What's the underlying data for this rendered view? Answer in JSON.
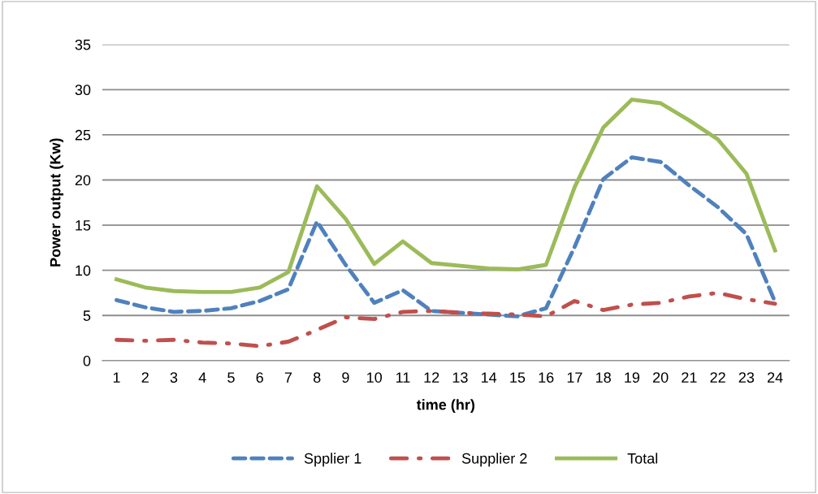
{
  "chart_data": {
    "type": "line",
    "xlabel": "time (hr)",
    "ylabel": "Power output (Kw)",
    "categories": [
      "1",
      "2",
      "3",
      "4",
      "5",
      "6",
      "7",
      "8",
      "9",
      "10",
      "11",
      "12",
      "13",
      "14",
      "15",
      "16",
      "17",
      "18",
      "19",
      "20",
      "21",
      "22",
      "23",
      "24"
    ],
    "series": [
      {
        "name": "Spplier 1",
        "color": "#4f81bd",
        "line_style": "dashed",
        "values": [
          6.7,
          5.9,
          5.4,
          5.5,
          5.8,
          6.6,
          7.9,
          15.4,
          10.6,
          6.4,
          7.8,
          5.5,
          5.3,
          5.1,
          4.9,
          5.8,
          12.6,
          20.1,
          22.5,
          22.0,
          19.4,
          17.0,
          14.0,
          6.5
        ]
      },
      {
        "name": "Supplier 2",
        "color": "#c0504d",
        "line_style": "dashdot",
        "values": [
          2.3,
          2.2,
          2.3,
          2.0,
          1.9,
          1.6,
          2.1,
          3.4,
          4.8,
          4.6,
          5.4,
          5.5,
          5.3,
          5.2,
          5.1,
          4.9,
          6.6,
          5.6,
          6.2,
          6.4,
          7.1,
          7.5,
          6.8,
          6.3
        ]
      },
      {
        "name": "Total",
        "color": "#9bbb59",
        "line_style": "solid",
        "values": [
          9.0,
          8.1,
          7.7,
          7.6,
          7.6,
          8.1,
          9.8,
          19.3,
          15.7,
          10.7,
          13.2,
          10.8,
          10.5,
          10.2,
          10.1,
          10.6,
          19.2,
          25.8,
          28.9,
          28.5,
          26.6,
          24.5,
          20.7,
          12.2
        ]
      }
    ],
    "ylim": [
      0,
      35
    ],
    "yticks": [
      0,
      5,
      10,
      15,
      20,
      25,
      30,
      35
    ],
    "grid": "y",
    "legend": "bottom",
    "marker": "none"
  }
}
